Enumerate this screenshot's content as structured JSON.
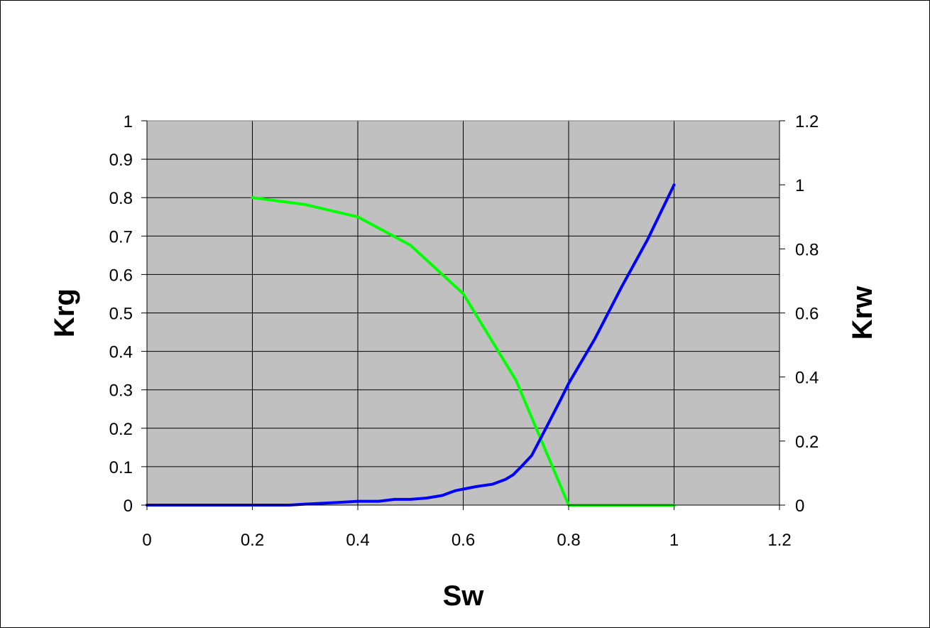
{
  "chart_data": {
    "type": "line",
    "title": "",
    "xlabel": "Sw",
    "ylabel": "Krg",
    "y2label": "Krw",
    "xlim": [
      0,
      1.2
    ],
    "ylim": [
      0,
      1
    ],
    "y2lim": [
      0,
      1.2
    ],
    "x_ticks": [
      "0",
      "0.2",
      "0.4",
      "0.6",
      "0.8",
      "1",
      "1.2"
    ],
    "y_ticks": [
      "0",
      "0.1",
      "0.2",
      "0.3",
      "0.4",
      "0.5",
      "0.6",
      "0.7",
      "0.8",
      "0.9",
      "1"
    ],
    "y2_ticks": [
      "0",
      "0.2",
      "0.4",
      "0.6",
      "0.8",
      "1",
      "1.2"
    ],
    "grid": true,
    "legend": "none",
    "plot_background": "#c0c0c0",
    "series": [
      {
        "axis": "left",
        "color": "#00ff00",
        "x": [
          0.2,
          0.3,
          0.4,
          0.5,
          0.6,
          0.7,
          0.8,
          1.0
        ],
        "y": [
          0.8,
          0.782,
          0.75,
          0.676,
          0.55,
          0.325,
          0.0,
          0.0
        ]
      },
      {
        "axis": "right",
        "color": "#0000ff",
        "x": [
          0.0,
          0.2,
          0.27,
          0.3,
          0.36,
          0.4,
          0.44,
          0.47,
          0.5,
          0.53,
          0.56,
          0.585,
          0.6,
          0.625,
          0.655,
          0.68,
          0.695,
          0.71,
          0.73,
          0.76,
          0.785,
          0.8,
          0.85,
          0.9,
          0.95,
          1.0
        ],
        "y": [
          0.0,
          0.0,
          0.0,
          0.003,
          0.008,
          0.012,
          0.012,
          0.018,
          0.018,
          0.022,
          0.03,
          0.045,
          0.05,
          0.058,
          0.065,
          0.08,
          0.095,
          0.12,
          0.155,
          0.25,
          0.33,
          0.38,
          0.52,
          0.68,
          0.83,
          1.0
        ]
      }
    ]
  }
}
